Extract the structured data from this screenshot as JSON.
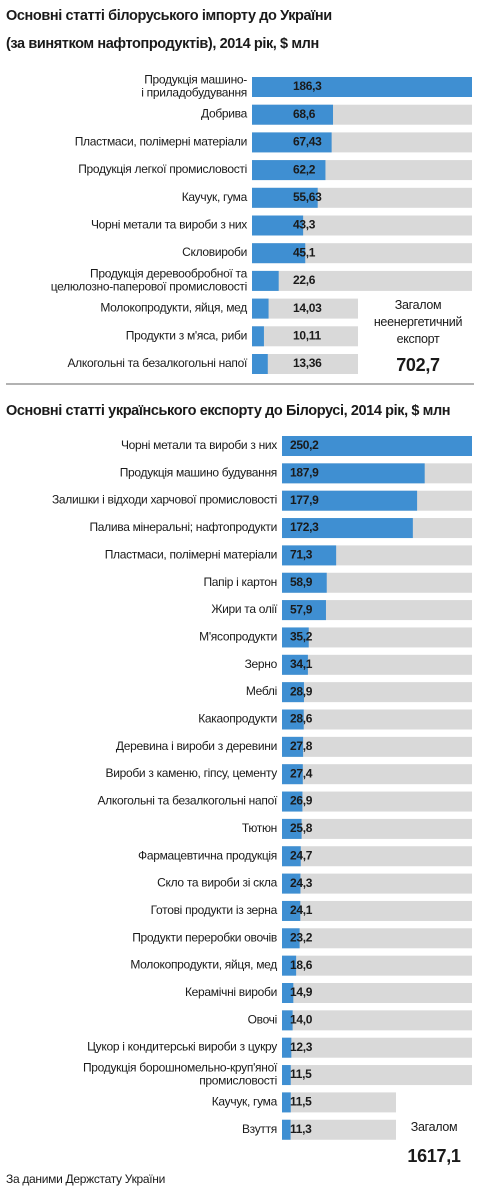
{
  "chart_data": [
    {
      "type": "bar",
      "orientation": "horizontal",
      "title": "Основні статті білоруського імпорту до України\n(за винятком нафтопродуктів), 2014 рік, $ млн",
      "categories": [
        "Продукція машино-\nі приладобудування",
        "Добрива",
        "Пластмаси, полімерні матеріали",
        "Продукція легкої промисловості",
        "Каучук, гума",
        "Чорні метали та вироби з них",
        "Скловироби",
        "Продукція деревообробної та\nцелюлозно-паперової промисловості",
        "Молокопродукти, яйця, мед",
        "Продукти з м'яса, риби",
        "Алкогольні та безалкогольні напої"
      ],
      "values": [
        186.3,
        68.6,
        67.43,
        62.2,
        55.63,
        43.3,
        45.1,
        22.6,
        14.03,
        10.11,
        13.36
      ],
      "value_labels": [
        "186,3",
        "68,6",
        "67,43",
        "62,2",
        "55,63",
        "43,3",
        "45,1",
        "22,6",
        "14,03",
        "10,11",
        "13,36"
      ],
      "xlim": [
        0,
        186.3
      ],
      "color": "#3f8fd2",
      "total": {
        "label": "Загалом\nнеенергетичний\nекспорт",
        "value": 702.7,
        "value_label": "702,7"
      }
    },
    {
      "type": "bar",
      "orientation": "horizontal",
      "title": "Основні статті українського експорту до Білорусі, 2014 рік, $ млн",
      "categories": [
        "Чорні метали та вироби з них",
        "Продукція машино будування",
        "Залишки і відходи харчової промисловості",
        "Палива мінеральні; нафтопродукти",
        "Пластмаси, полімерні матеріали",
        "Папір і картон",
        "Жири та олії",
        "М'ясопродукти",
        "Зерно",
        "Меблі",
        "Какаопродукти",
        "Деревина і вироби з деревини",
        "Вироби з каменю, гіпсу, цементу",
        "Алкогольні та безалкогольні напої",
        "Тютюн",
        "Фармацевтична продукція",
        "Скло та вироби зі скла",
        "Готові продукти із зерна",
        "Продукти переробки овочів",
        "Молокопродукти, яйця, мед",
        "Керамічні вироби",
        "Овочі",
        "Цукор і кондитерські вироби з цукру",
        "Продукція борошномельно-круп'яної\nпромисловості",
        "Каучук, гума",
        "Взуття"
      ],
      "values": [
        250.2,
        187.9,
        177.9,
        172.3,
        71.3,
        58.9,
        57.9,
        35.2,
        34.1,
        28.9,
        28.6,
        27.8,
        27.4,
        26.9,
        25.8,
        24.7,
        24.3,
        24.1,
        23.2,
        18.6,
        14.9,
        14.0,
        12.3,
        11.5,
        11.5,
        11.3
      ],
      "value_labels": [
        "250,2",
        "187,9",
        "177,9",
        "172,3",
        "71,3",
        "58,9",
        "57,9",
        "35,2",
        "34,1",
        "28,9",
        "28,6",
        "27,8",
        "27,4",
        "26,9",
        "25,8",
        "24,7",
        "24,3",
        "24,1",
        "23,2",
        "18,6",
        "14,9",
        "14,0",
        "12,3",
        "11,5",
        "11,5",
        "11,3"
      ],
      "xlim": [
        0,
        250.2
      ],
      "color": "#3f8fd2",
      "total": {
        "label": "Загалом",
        "value": 1617.1,
        "value_label": "1617,1"
      }
    }
  ],
  "source": "За даними Держстату України"
}
